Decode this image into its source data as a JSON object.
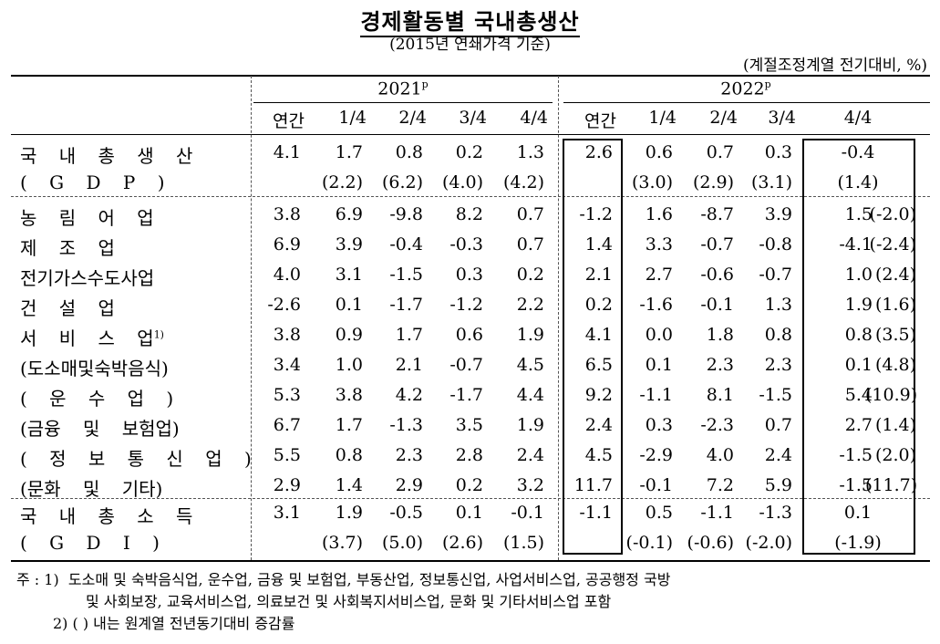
{
  "title": "경제활동별 국내총생산",
  "subtitle": "(2015년 연쇄가격 기준)",
  "unit": "(계절조정계열 전기대비, %)",
  "year_2021": {
    "text": "2021",
    "sup": "p"
  },
  "year_2022": {
    "text": "2022",
    "sup": "p"
  },
  "columns": [
    "연간",
    "1/4",
    "2/4",
    "3/4",
    "4/4",
    "연간",
    "1/4",
    "2/4",
    "3/4",
    "4/4"
  ],
  "rows": [
    {
      "label": "국 내 총 생 산",
      "sup": "",
      "values": [
        "4.1",
        "1.7",
        "0.8",
        "0.2",
        "1.3",
        "2.6",
        "0.6",
        "0.7",
        "0.3",
        "-0.4"
      ],
      "extra": ""
    },
    {
      "label": "( G D P )",
      "sup": "",
      "values": [
        "",
        "(2.2)",
        "(6.2)",
        "(4.0)",
        "(4.2)",
        "",
        "(3.0)",
        "(2.9)",
        "(3.1)",
        "(1.4)"
      ],
      "extra": ""
    },
    {
      "label": "농 림 어 업",
      "sup": "",
      "values": [
        "3.8",
        "6.9",
        "-9.8",
        "8.2",
        "0.7",
        "-1.2",
        "1.6",
        "-8.7",
        "3.9",
        "1.5"
      ],
      "extra": "(-2.0)"
    },
    {
      "label": "제 조 업",
      "sup": "",
      "values": [
        "6.9",
        "3.9",
        "-0.4",
        "-0.3",
        "0.7",
        "1.4",
        "3.3",
        "-0.7",
        "-0.8",
        "-4.1"
      ],
      "extra": "(-2.4)"
    },
    {
      "label": "전기가스수도사업",
      "sup": "",
      "values": [
        "4.0",
        "3.1",
        "-1.5",
        "0.3",
        "0.2",
        "2.1",
        "2.7",
        "-0.6",
        "-0.7",
        "1.0"
      ],
      "extra": "(2.4)"
    },
    {
      "label": "건 설 업",
      "sup": "",
      "values": [
        "-2.6",
        "0.1",
        "-1.7",
        "-1.2",
        "2.2",
        "0.2",
        "-1.6",
        "-0.1",
        "1.3",
        "1.9"
      ],
      "extra": "(1.6)"
    },
    {
      "label": "서 비 스 업",
      "sup": "1)",
      "values": [
        "3.8",
        "0.9",
        "1.7",
        "0.6",
        "1.9",
        "4.1",
        "0.0",
        "1.8",
        "0.8",
        "0.8"
      ],
      "extra": "(3.5)"
    },
    {
      "label": "(도소매및숙박음식)",
      "sup": "",
      "values": [
        "3.4",
        "1.0",
        "2.1",
        "-0.7",
        "4.5",
        "6.5",
        "0.1",
        "2.3",
        "2.3",
        "0.1"
      ],
      "extra": "(4.8)"
    },
    {
      "label": "( 운 수 업 )",
      "sup": "",
      "values": [
        "5.3",
        "3.8",
        "4.2",
        "-1.7",
        "4.4",
        "9.2",
        "-1.1",
        "8.1",
        "-1.5",
        "5.4"
      ],
      "extra": "(10.9)"
    },
    {
      "label": "(금융 및 보험업)",
      "sup": "",
      "values": [
        "6.7",
        "1.7",
        "-1.3",
        "3.5",
        "1.9",
        "2.4",
        "0.3",
        "-2.3",
        "0.7",
        "2.7"
      ],
      "extra": "(1.4)"
    },
    {
      "label": "( 정 보 통 신 업 )",
      "sup": "",
      "values": [
        "5.5",
        "0.8",
        "2.3",
        "2.8",
        "2.4",
        "4.5",
        "-2.9",
        "4.0",
        "2.4",
        "-1.5"
      ],
      "extra": "(2.0)"
    },
    {
      "label": "(문화 및 기타)",
      "sup": "",
      "values": [
        "2.9",
        "1.4",
        "2.9",
        "0.2",
        "3.2",
        "11.7",
        "-0.1",
        "7.2",
        "5.9",
        "-1.5"
      ],
      "extra": "(11.7)"
    },
    {
      "label": "국 내 총 소 득",
      "sup": "",
      "values": [
        "3.1",
        "1.9",
        "-0.5",
        "0.1",
        "-0.1",
        "-1.1",
        "0.5",
        "-1.1",
        "-1.3",
        "0.1"
      ],
      "extra": ""
    },
    {
      "label": "( G D I )",
      "sup": "",
      "values": [
        "",
        "(3.7)",
        "(5.0)",
        "(2.6)",
        "(1.5)",
        "",
        "(-0.1)",
        "(-0.6)",
        "(-2.0)",
        "(-1.9)"
      ],
      "extra": ""
    }
  ],
  "notes": {
    "prefix": "주 :",
    "n1_marker": "1)",
    "n1_line1": "도소매 및 숙박음식업, 운수업, 금융 및 보험업, 부동산업, 정보통신업, 사업서비스업, 공공행정 국방",
    "n1_line2": "및 사회보장, 교육서비스업, 의료보건 및 사회복지서비스업, 문화 및 기타서비스업 포함",
    "n2": "2) (  ) 내는 원계열 전년동기대비 증감률"
  }
}
